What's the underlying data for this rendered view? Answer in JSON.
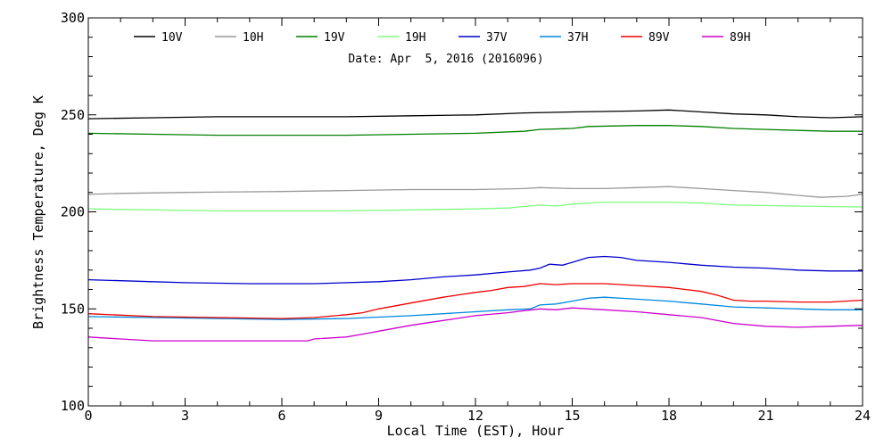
{
  "chart_data": {
    "type": "line",
    "date_label": "Date: Apr  5, 2016 (2016096)",
    "xlabel": "Local Time (EST), Hour",
    "ylabel": "Brightness Temperature, Deg K",
    "xlim": [
      0,
      24
    ],
    "ylim": [
      100,
      300
    ],
    "x_ticks": [
      0,
      3,
      6,
      9,
      12,
      15,
      18,
      21,
      24
    ],
    "y_ticks": [
      100,
      150,
      200,
      250,
      300
    ],
    "x_tick_labels": [
      "0",
      "3",
      "6",
      "9",
      "12",
      "15",
      "18",
      "21",
      "24"
    ],
    "y_tick_labels": [
      "100",
      "150",
      "200",
      "250",
      "300"
    ],
    "grid": false,
    "legend_position": "top",
    "series": [
      {
        "name": "10V",
        "color": "#000000",
        "points": [
          [
            0,
            248
          ],
          [
            2,
            248.5
          ],
          [
            4,
            249
          ],
          [
            6,
            249
          ],
          [
            8,
            249
          ],
          [
            10,
            249.5
          ],
          [
            12,
            250
          ],
          [
            13.5,
            251
          ],
          [
            15,
            251.5
          ],
          [
            17,
            252
          ],
          [
            18,
            252.5
          ],
          [
            19,
            251.5
          ],
          [
            20,
            250.5
          ],
          [
            21,
            250
          ],
          [
            22,
            249
          ],
          [
            23,
            248.5
          ],
          [
            24,
            249
          ]
        ]
      },
      {
        "name": "10H",
        "color": "#999999",
        "points": [
          [
            0,
            209
          ],
          [
            1,
            209.5
          ],
          [
            3,
            210
          ],
          [
            6,
            210.5
          ],
          [
            8,
            211
          ],
          [
            10,
            211.5
          ],
          [
            12,
            211.5
          ],
          [
            13.5,
            212
          ],
          [
            14,
            212.5
          ],
          [
            15,
            212
          ],
          [
            16,
            212
          ],
          [
            17,
            212.5
          ],
          [
            18,
            213
          ],
          [
            19,
            212
          ],
          [
            20,
            211
          ],
          [
            21,
            210
          ],
          [
            22,
            208.5
          ],
          [
            22.7,
            207.5
          ],
          [
            23.5,
            208
          ],
          [
            24,
            209
          ]
        ]
      },
      {
        "name": "19V",
        "color": "#008000",
        "points": [
          [
            0,
            240.5
          ],
          [
            2,
            240
          ],
          [
            4,
            239.5
          ],
          [
            6,
            239.5
          ],
          [
            8,
            239.5
          ],
          [
            10,
            240
          ],
          [
            12,
            240.5
          ],
          [
            13.5,
            241.5
          ],
          [
            14,
            242.5
          ],
          [
            15,
            243
          ],
          [
            15.5,
            244
          ],
          [
            17,
            244.5
          ],
          [
            18,
            244.5
          ],
          [
            19,
            244
          ],
          [
            20,
            243
          ],
          [
            21,
            242.5
          ],
          [
            22,
            242
          ],
          [
            23,
            241.5
          ],
          [
            24,
            241.5
          ]
        ]
      },
      {
        "name": "19H",
        "color": "#80ff80",
        "points": [
          [
            0,
            201.5
          ],
          [
            2,
            201
          ],
          [
            4,
            200.5
          ],
          [
            6,
            200.5
          ],
          [
            8,
            200.5
          ],
          [
            10,
            201
          ],
          [
            12,
            201.5
          ],
          [
            13,
            202
          ],
          [
            14,
            203.5
          ],
          [
            14.5,
            203
          ],
          [
            15,
            204
          ],
          [
            16,
            205
          ],
          [
            18,
            205
          ],
          [
            19,
            204.5
          ],
          [
            20,
            203.5
          ],
          [
            22,
            203
          ],
          [
            24,
            202.5
          ]
        ]
      },
      {
        "name": "37V",
        "color": "#0000cc",
        "points": [
          [
            0,
            165
          ],
          [
            2,
            164
          ],
          [
            3,
            163.5
          ],
          [
            5,
            163
          ],
          [
            7,
            163
          ],
          [
            9,
            164
          ],
          [
            10,
            165
          ],
          [
            11,
            166.5
          ],
          [
            12,
            167.5
          ],
          [
            13,
            169
          ],
          [
            13.7,
            170
          ],
          [
            14,
            171
          ],
          [
            14.3,
            173
          ],
          [
            14.7,
            172.5
          ],
          [
            15,
            174
          ],
          [
            15.5,
            176.5
          ],
          [
            16,
            177
          ],
          [
            16.5,
            176.5
          ],
          [
            17,
            175
          ],
          [
            18,
            174
          ],
          [
            19,
            172.5
          ],
          [
            20,
            171.5
          ],
          [
            21,
            171
          ],
          [
            22,
            170
          ],
          [
            23,
            169.5
          ],
          [
            24,
            169.5
          ]
        ]
      },
      {
        "name": "37H",
        "color": "#0088dd",
        "points": [
          [
            0,
            146
          ],
          [
            2,
            145.5
          ],
          [
            4,
            145
          ],
          [
            6,
            144.5
          ],
          [
            8,
            145
          ],
          [
            10,
            146.5
          ],
          [
            12,
            148.5
          ],
          [
            13,
            149.5
          ],
          [
            13.7,
            150
          ],
          [
            14,
            152
          ],
          [
            14.5,
            152.5
          ],
          [
            15,
            154
          ],
          [
            15.5,
            155.5
          ],
          [
            16,
            156
          ],
          [
            17,
            155
          ],
          [
            18,
            154
          ],
          [
            19,
            152.5
          ],
          [
            20,
            151
          ],
          [
            21,
            150.5
          ],
          [
            22,
            150
          ],
          [
            23,
            149.5
          ],
          [
            24,
            149.5
          ]
        ]
      },
      {
        "name": "89V",
        "color": "#ee0000",
        "points": [
          [
            0,
            147.5
          ],
          [
            2,
            146
          ],
          [
            4,
            145.5
          ],
          [
            6,
            145
          ],
          [
            7,
            145.5
          ],
          [
            8,
            147
          ],
          [
            8.5,
            148
          ],
          [
            9,
            150
          ],
          [
            10,
            153
          ],
          [
            11,
            156
          ],
          [
            12,
            158.5
          ],
          [
            12.5,
            159.5
          ],
          [
            13,
            161
          ],
          [
            13.5,
            161.5
          ],
          [
            14,
            163
          ],
          [
            14.5,
            162.5
          ],
          [
            15,
            163
          ],
          [
            16,
            163
          ],
          [
            17,
            162
          ],
          [
            18,
            161
          ],
          [
            19,
            159
          ],
          [
            19.5,
            157
          ],
          [
            20,
            154.5
          ],
          [
            20.5,
            154
          ],
          [
            21,
            154
          ],
          [
            22,
            153.5
          ],
          [
            23,
            153.5
          ],
          [
            24,
            154.5
          ]
        ]
      },
      {
        "name": "89H",
        "color": "#cc00cc",
        "points": [
          [
            0,
            135.5
          ],
          [
            1,
            134.5
          ],
          [
            2,
            133.5
          ],
          [
            4,
            133.5
          ],
          [
            6,
            133.5
          ],
          [
            6.8,
            133.5
          ],
          [
            7,
            134.5
          ],
          [
            8,
            135.5
          ],
          [
            8.7,
            137.5
          ],
          [
            9,
            138.5
          ],
          [
            10,
            141.5
          ],
          [
            11,
            144
          ],
          [
            12,
            146.5
          ],
          [
            13,
            148
          ],
          [
            13.5,
            149
          ],
          [
            14,
            150
          ],
          [
            14.5,
            149.5
          ],
          [
            15,
            150.5
          ],
          [
            16,
            149.5
          ],
          [
            17,
            148.5
          ],
          [
            18,
            147
          ],
          [
            19,
            145.5
          ],
          [
            20,
            142.5
          ],
          [
            21,
            141
          ],
          [
            22,
            140.5
          ],
          [
            23,
            141
          ],
          [
            24,
            141.5
          ]
        ]
      }
    ]
  }
}
